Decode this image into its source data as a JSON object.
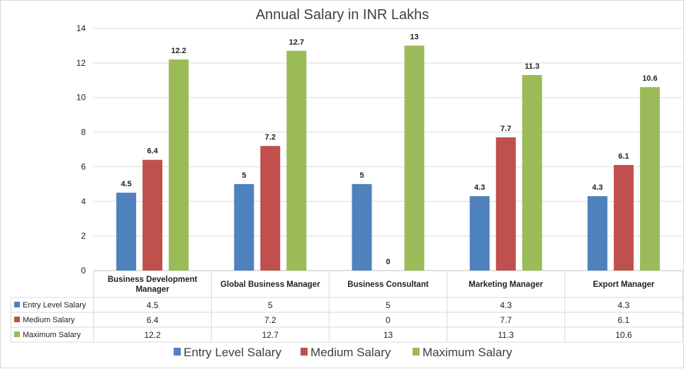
{
  "chart_data": {
    "type": "bar",
    "title": "Annual Salary in INR Lakhs",
    "categories": [
      [
        "Business Development",
        "Manager"
      ],
      [
        "Global Business Manager"
      ],
      [
        "Business Consultant"
      ],
      [
        "Marketing Manager"
      ],
      [
        "Export Manager"
      ]
    ],
    "series": [
      {
        "name": "Entry Level Salary",
        "color": "#4f81bd",
        "values": [
          4.5,
          5,
          5,
          4.3,
          4.3
        ]
      },
      {
        "name": "Medium Salary",
        "color": "#c0504d",
        "values": [
          6.4,
          7.2,
          0,
          7.7,
          6.1
        ]
      },
      {
        "name": "Maximum Salary",
        "color": "#9bbb59",
        "values": [
          12.2,
          12.7,
          13,
          11.3,
          10.6
        ]
      }
    ],
    "ylim": [
      0,
      14
    ],
    "yticks": [
      0,
      2,
      4,
      6,
      8,
      10,
      12,
      14
    ],
    "xlabel": "",
    "ylabel": "",
    "grid": true,
    "data_table": true,
    "legend": "bottom"
  }
}
